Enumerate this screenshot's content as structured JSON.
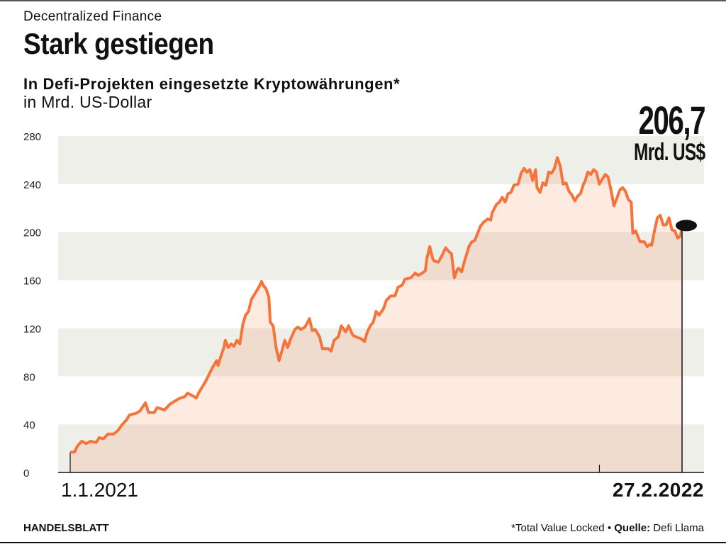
{
  "header": {
    "kicker": "Decentralized Finance",
    "title": "Stark gestiegen",
    "subtitle": "In Defi-Projekten eingesetzte Kryptowährungen*",
    "unit": "in Mrd. US-Dollar"
  },
  "highlight": {
    "value": "206,7",
    "unit": "Mrd. US$"
  },
  "footer": {
    "brand": "HANDELSBLATT",
    "note": "*Total Value Locked",
    "separator": "•",
    "source_label": "Quelle:",
    "source": "Defi Llama"
  },
  "colors": {
    "line": "#f4743b",
    "fill": "rgba(246,130,80,0.17)",
    "band": "#efefea",
    "marker": "#111111"
  },
  "chart_data": {
    "type": "area",
    "title": "In Defi-Projekten eingesetzte Kryptowährungen*",
    "ylabel": "in Mrd. US-Dollar",
    "xlabel": "",
    "x_unit": "days since 1.1.2021",
    "x_labels": [
      "1.1.2021",
      "27.2.2022"
    ],
    "xlim": [
      0,
      422
    ],
    "ylim": [
      0,
      280
    ],
    "yticks": [
      0,
      40,
      80,
      120,
      160,
      200,
      240,
      280
    ],
    "grid": "alternating horizontal bands",
    "year_tick_day": 365,
    "end_value": 206.7,
    "series": [
      {
        "name": "Total Value Locked",
        "x": [
          0,
          3,
          5,
          8,
          11,
          14,
          18,
          20,
          23,
          26,
          30,
          33,
          36,
          39,
          41,
          45,
          48,
          52,
          54,
          58,
          60,
          65,
          69,
          73,
          76,
          79,
          81,
          84,
          87,
          89,
          93,
          96,
          98,
          101,
          102,
          104,
          106,
          107,
          109,
          111,
          113,
          115,
          117,
          119,
          121,
          123,
          125,
          128,
          130,
          132,
          133,
          135,
          137,
          138,
          140,
          142,
          144,
          146,
          148,
          150,
          152,
          155,
          157,
          159,
          162,
          165,
          167,
          169,
          172,
          174,
          178,
          180,
          182,
          185,
          187,
          190,
          192,
          195,
          197,
          201,
          203,
          205,
          207,
          209,
          211,
          213,
          216,
          218,
          221,
          224,
          226,
          229,
          231,
          235,
          238,
          240,
          243,
          245,
          246,
          248,
          250,
          251,
          254,
          257,
          259,
          261,
          263,
          265,
          267,
          268,
          270,
          272,
          275,
          277,
          279,
          281,
          283,
          285,
          288,
          290,
          291,
          294,
          296,
          298,
          300,
          302,
          304,
          306,
          309,
          311,
          313,
          315,
          317,
          319,
          321,
          322,
          324,
          326,
          328,
          330,
          332,
          334,
          336,
          338,
          340,
          342,
          344,
          346,
          348,
          350,
          352,
          354,
          355,
          357,
          359,
          361,
          363,
          365,
          367,
          369,
          371,
          373,
          375,
          377,
          379,
          381,
          383,
          385,
          387,
          388,
          390,
          393,
          396,
          398,
          400,
          401,
          403,
          405,
          407,
          409,
          411,
          413,
          415,
          417,
          419,
          421,
          422
        ],
        "values": [
          17,
          17,
          22,
          26,
          24,
          26,
          25,
          29,
          28,
          32,
          32,
          35,
          40,
          44,
          48,
          49,
          51,
          58,
          50,
          50,
          54,
          52,
          57,
          60,
          62,
          63,
          66,
          64,
          62,
          67,
          75,
          82,
          87,
          93,
          89,
          97,
          104,
          110,
          104,
          107,
          105,
          110,
          107,
          123,
          131,
          134,
          144,
          150,
          154,
          159,
          156,
          153,
          146,
          125,
          122,
          104,
          93,
          101,
          110,
          104,
          111,
          119,
          121,
          119,
          121,
          128,
          118,
          119,
          113,
          103,
          103,
          101,
          110,
          113,
          122,
          117,
          122,
          114,
          113,
          111,
          109,
          117,
          122,
          125,
          134,
          131,
          136,
          143,
          147,
          147,
          154,
          156,
          161,
          162,
          166,
          164,
          166,
          168,
          178,
          188,
          178,
          176,
          175,
          182,
          187,
          184,
          182,
          162,
          169,
          170,
          167,
          176,
          188,
          192,
          193,
          199,
          205,
          208,
          211,
          210,
          216,
          223,
          225,
          229,
          225,
          232,
          233,
          239,
          240,
          249,
          253,
          250,
          252,
          243,
          252,
          237,
          233,
          241,
          239,
          250,
          249,
          253,
          262,
          255,
          240,
          241,
          234,
          231,
          226,
          230,
          232,
          240,
          242,
          250,
          248,
          252,
          250,
          240,
          244,
          248,
          246,
          235,
          222,
          228,
          235,
          237,
          234,
          227,
          225,
          199,
          201,
          192,
          192,
          188,
          190,
          189,
          201,
          212,
          214,
          206,
          206,
          212,
          202,
          201,
          195,
          197,
          206.7
        ]
      }
    ]
  }
}
